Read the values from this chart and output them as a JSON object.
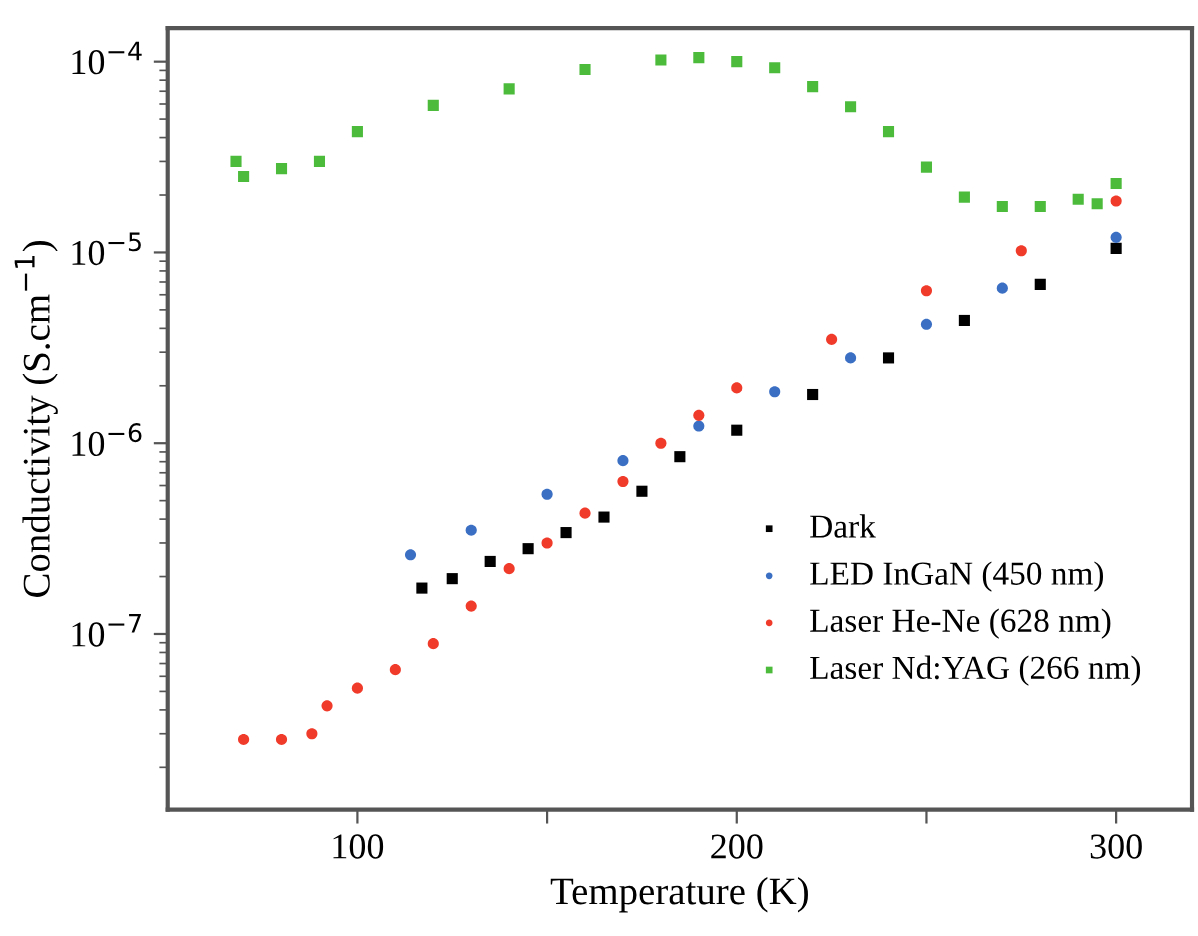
{
  "chart_data": {
    "type": "scatter",
    "xlabel": "Temperature (K)",
    "ylabel": "Conductivity (S.cm$^{−1}$)",
    "log": "y",
    "xlim": [
      50,
      320
    ],
    "ylim": [
      1.2e-08,
      0.00015
    ],
    "xticks": [
      100,
      {
        "value": 150,
        "label": null
      },
      200,
      {
        "value": 250,
        "label": null
      },
      300
    ],
    "yticks": [
      {
        "value": 1e-07,
        "label": "10$^{−7}$"
      },
      {
        "value": 1e-06,
        "label": "10$^{−6}$"
      },
      {
        "value": 1e-05,
        "label": "10$^{−5}$"
      },
      {
        "value": 0.0001,
        "label": "10$^{−4}$"
      }
    ],
    "grid": false,
    "legend": "bottom right",
    "series": [
      {
        "name": "Dark",
        "color": "#000000",
        "marker": "square",
        "x": [
          117,
          125,
          135,
          145,
          155,
          165,
          175,
          185,
          200,
          220,
          240,
          260,
          280,
          300
        ],
        "values": [
          1.74e-07,
          1.95e-07,
          2.4e-07,
          2.8e-07,
          3.4e-07,
          4.1e-07,
          5.6e-07,
          8.5e-07,
          1.17e-06,
          1.8e-06,
          2.8e-06,
          4.4e-06,
          6.8e-06,
          1.05e-05
        ]
      },
      {
        "name": "LED InGaN (450 nm)",
        "color": "#3a6fc4",
        "marker": "circle",
        "x": [
          114,
          130,
          150,
          170,
          190,
          210,
          230,
          250,
          270,
          300
        ],
        "values": [
          2.6e-07,
          3.5e-07,
          5.4e-07,
          8.1e-07,
          1.23e-06,
          1.86e-06,
          2.8e-06,
          4.2e-06,
          6.5e-06,
          1.2e-05
        ]
      },
      {
        "name": "Laser He-Ne (628 nm)",
        "color": "#f03a2a",
        "marker": "circle",
        "x": [
          70,
          80,
          88,
          92,
          100,
          110,
          120,
          130,
          140,
          150,
          160,
          170,
          180,
          190,
          200,
          225,
          250,
          275,
          300
        ],
        "values": [
          2.8e-08,
          2.8e-08,
          3e-08,
          4.2e-08,
          5.2e-08,
          6.5e-08,
          8.9e-08,
          1.4e-07,
          2.2e-07,
          3e-07,
          4.3e-07,
          6.3e-07,
          1e-06,
          1.4e-06,
          1.95e-06,
          3.5e-06,
          6.3e-06,
          1.02e-05,
          1.86e-05
        ]
      },
      {
        "name": "Laser Nd:YAG (266 nm)",
        "color": "#4cbb3c",
        "marker": "square",
        "x": [
          68,
          70,
          80,
          90,
          100,
          120,
          140,
          160,
          180,
          190,
          200,
          210,
          220,
          230,
          240,
          250,
          260,
          270,
          280,
          290,
          295,
          300
        ],
        "values": [
          3e-05,
          2.5e-05,
          2.75e-05,
          3e-05,
          4.3e-05,
          5.9e-05,
          7.2e-05,
          9.1e-05,
          0.000102,
          0.000105,
          0.0001,
          9.3e-05,
          7.4e-05,
          5.8e-05,
          4.3e-05,
          2.8e-05,
          1.95e-05,
          1.74e-05,
          1.74e-05,
          1.9e-05,
          1.8e-05,
          2.3e-05
        ]
      }
    ]
  }
}
